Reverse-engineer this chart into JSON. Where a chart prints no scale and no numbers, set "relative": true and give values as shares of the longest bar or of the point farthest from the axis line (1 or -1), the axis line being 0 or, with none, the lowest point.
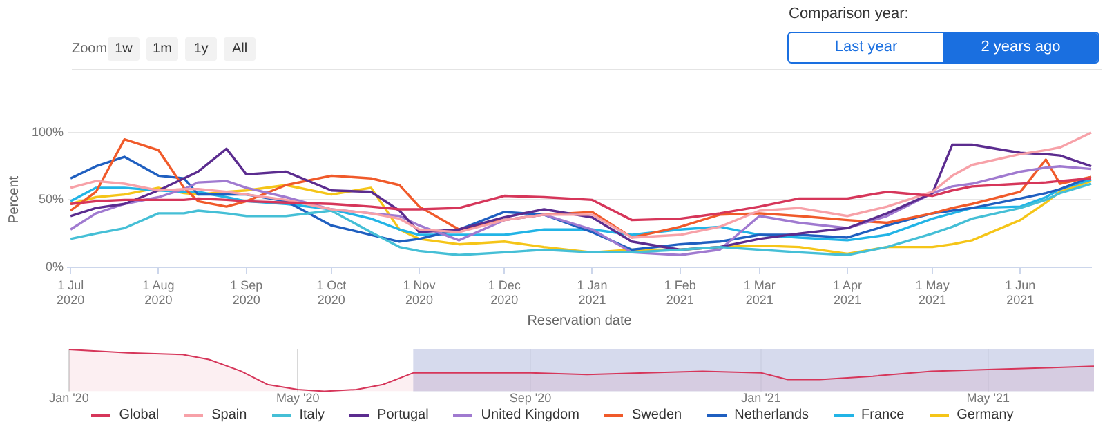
{
  "chart_data": [
    {
      "type": "line",
      "xlabel": "Reservation date",
      "ylabel": "Percent",
      "annotations": [
        "Zoom",
        "1w",
        "1m",
        "1y",
        "All",
        "Comparison year:",
        "Last year",
        "2 years ago"
      ],
      "x": [
        "2020-07-01",
        "2020-07-10",
        "2020-07-20",
        "2020-08-01",
        "2020-08-10",
        "2020-08-15",
        "2020-08-25",
        "2020-09-01",
        "2020-09-15",
        "2020-10-01",
        "2020-10-15",
        "2020-10-25",
        "2020-11-01",
        "2020-11-15",
        "2020-12-01",
        "2020-12-15",
        "2021-01-01",
        "2021-01-15",
        "2021-02-01",
        "2021-02-15",
        "2021-03-01",
        "2021-03-15",
        "2021-04-01",
        "2021-04-15",
        "2021-05-01",
        "2021-05-08",
        "2021-05-15",
        "2021-06-01",
        "2021-06-10",
        "2021-06-15",
        "2021-06-26"
      ],
      "series": [
        {
          "name": "Global",
          "color": "#d6365a",
          "values": [
            47,
            49,
            50,
            50,
            50,
            51,
            50,
            49,
            48,
            47,
            45,
            43,
            43,
            44,
            53,
            52,
            50,
            35,
            36,
            40,
            45,
            51,
            51,
            56,
            53,
            57,
            60,
            62,
            63,
            64,
            66
          ]
        },
        {
          "name": "Spain",
          "color": "#f7a1a8",
          "values": [
            59,
            64,
            62,
            57,
            58,
            58,
            56,
            54,
            50,
            43,
            40,
            36,
            28,
            26,
            35,
            39,
            39,
            22,
            24,
            30,
            42,
            44,
            38,
            45,
            56,
            68,
            76,
            84,
            87,
            89,
            100
          ]
        },
        {
          "name": "Italy",
          "color": "#45bfd6",
          "values": [
            21,
            25,
            29,
            40,
            40,
            42,
            40,
            38,
            38,
            42,
            26,
            15,
            12,
            9,
            11,
            13,
            11,
            11,
            13,
            15,
            13,
            11,
            9,
            15,
            25,
            30,
            36,
            44,
            50,
            55,
            62
          ]
        },
        {
          "name": "Portugal",
          "color": "#5b2c8f",
          "values": [
            38,
            44,
            47,
            57,
            66,
            71,
            88,
            69,
            71,
            57,
            56,
            42,
            26,
            28,
            37,
            43,
            37,
            19,
            13,
            15,
            21,
            25,
            29,
            40,
            55,
            91,
            91,
            85,
            84,
            83,
            75
          ]
        },
        {
          "name": "United Kingdom",
          "color": "#a07ad0",
          "values": [
            28,
            40,
            47,
            52,
            58,
            63,
            64,
            59,
            52,
            43,
            40,
            38,
            31,
            20,
            35,
            39,
            28,
            11,
            9,
            13,
            38,
            33,
            29,
            38,
            55,
            60,
            62,
            71,
            74,
            75,
            73
          ]
        },
        {
          "name": "Sweden",
          "color": "#f05a2a",
          "values": [
            42,
            56,
            95,
            87,
            59,
            49,
            45,
            49,
            61,
            68,
            66,
            61,
            45,
            28,
            35,
            39,
            41,
            22,
            30,
            39,
            40,
            38,
            35,
            33,
            40,
            44,
            47,
            56,
            80,
            62,
            67
          ]
        },
        {
          "name": "Netherlands",
          "color": "#1f5fc0",
          "values": [
            66,
            75,
            82,
            68,
            66,
            54,
            54,
            54,
            49,
            31,
            24,
            19,
            21,
            28,
            41,
            39,
            26,
            13,
            17,
            19,
            24,
            24,
            22,
            31,
            40,
            42,
            44,
            51,
            55,
            58,
            67
          ]
        },
        {
          "name": "France",
          "color": "#22b4e6",
          "values": [
            49,
            59,
            59,
            57,
            56,
            56,
            52,
            49,
            47,
            43,
            36,
            28,
            24,
            24,
            24,
            28,
            28,
            24,
            28,
            30,
            24,
            22,
            20,
            24,
            36,
            40,
            44,
            45,
            52,
            58,
            65
          ]
        },
        {
          "name": "Germany",
          "color": "#f5c518",
          "values": [
            47,
            52,
            54,
            59,
            55,
            54,
            56,
            57,
            61,
            54,
            59,
            28,
            21,
            17,
            19,
            15,
            11,
            13,
            13,
            15,
            16,
            15,
            10,
            15,
            15,
            17,
            20,
            35,
            48,
            56,
            64
          ]
        }
      ],
      "xlim": [
        "2020-06-30",
        "2021-06-26"
      ],
      "xticks": [
        {
          "value": "2020-07-01",
          "label": "1 Jul 2020"
        },
        {
          "value": "2020-08-01",
          "label": "1 Aug 2020"
        },
        {
          "value": "2020-09-01",
          "label": "1 Sep 2020"
        },
        {
          "value": "2020-10-01",
          "label": "1 Oct 2020"
        },
        {
          "value": "2020-11-01",
          "label": "1 Nov 2020"
        },
        {
          "value": "2020-12-01",
          "label": "1 Dec 2020"
        },
        {
          "value": "2021-01-01",
          "label": "1 Jan 2021"
        },
        {
          "value": "2021-02-01",
          "label": "1 Feb 2021"
        },
        {
          "value": "2021-03-01",
          "label": "1 Mar 2021"
        },
        {
          "value": "2021-04-01",
          "label": "1 Apr 2021"
        },
        {
          "value": "2021-05-01",
          "label": "1 May 2021"
        },
        {
          "value": "2021-06-01",
          "label": "1 Jun 2021"
        }
      ],
      "ylim": [
        0,
        100
      ],
      "yticks": [
        {
          "value": 0,
          "label": "0%"
        },
        {
          "value": 50,
          "label": "50%"
        },
        {
          "value": 100,
          "label": "100%"
        }
      ],
      "grid": "y",
      "legend": "bottom",
      "marker": "none"
    },
    {
      "type": "area",
      "relative": true,
      "x": [
        "2020-01-01",
        "2020-02-01",
        "2020-03-01",
        "2020-03-15",
        "2020-04-01",
        "2020-04-15",
        "2020-05-01",
        "2020-05-15",
        "2020-06-01",
        "2020-06-15",
        "2020-07-01",
        "2020-08-01",
        "2020-09-01",
        "2020-10-01",
        "2020-11-01",
        "2020-12-01",
        "2021-01-01",
        "2021-01-15",
        "2021-02-01",
        "2021-03-01",
        "2021-04-01",
        "2021-05-01",
        "2021-06-01",
        "2021-06-26"
      ],
      "series": [
        {
          "color": "#d6365a",
          "values": [
            1,
            0.92,
            0.88,
            0.76,
            0.48,
            0.16,
            0.04,
            0,
            0.04,
            0.16,
            0.44,
            0.44,
            0.44,
            0.4,
            0.44,
            0.48,
            0.44,
            0.28,
            0.28,
            0.36,
            0.48,
            0.52,
            0.56,
            0.6
          ]
        }
      ],
      "xlim": [
        "2020-01-01",
        "2021-06-26"
      ],
      "xticks": [
        {
          "value": "2020-01-01",
          "label": "Jan '20"
        },
        {
          "value": "2020-05-01",
          "label": "May '20"
        },
        {
          "value": "2020-09-01",
          "label": "Sep '20"
        },
        {
          "value": "2021-01-01",
          "label": "Jan '21"
        },
        {
          "value": "2021-05-01",
          "label": "May '21"
        }
      ],
      "bands": [
        {
          "axis": "x",
          "from": "2020-07-01",
          "to": "2021-06-26",
          "color": "#ccd1e8"
        }
      ],
      "grid": "x",
      "marker": "none"
    }
  ]
}
